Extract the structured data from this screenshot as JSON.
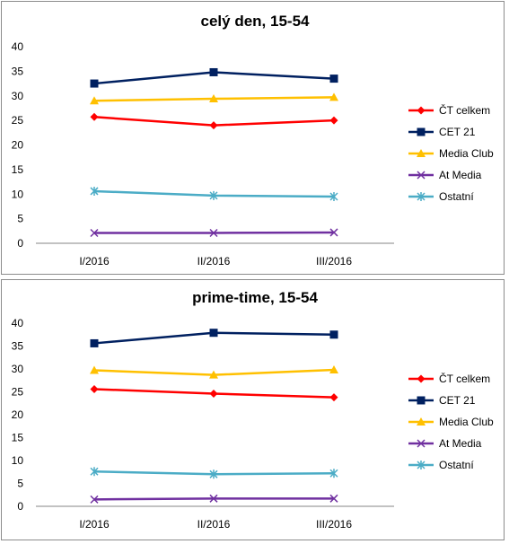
{
  "chart_data": [
    {
      "type": "line",
      "title": "celý den, 15-54",
      "categories": [
        "I/2016",
        "II/2016",
        "III/2016"
      ],
      "ylim": [
        0,
        40
      ],
      "yticks": [
        0,
        5,
        10,
        15,
        20,
        25,
        30,
        35,
        40
      ],
      "grid": false,
      "legend": "right",
      "series": [
        {
          "name": "ČT celkem",
          "values": [
            25.7,
            24.0,
            25.0
          ],
          "color": "#ff0000",
          "marker": "diamond"
        },
        {
          "name": "CET 21",
          "values": [
            32.5,
            34.8,
            33.5
          ],
          "color": "#002060",
          "marker": "square"
        },
        {
          "name": "Media Club",
          "values": [
            29.0,
            29.4,
            29.7
          ],
          "color": "#ffc000",
          "marker": "triangle"
        },
        {
          "name": "At Media",
          "values": [
            2.1,
            2.1,
            2.2
          ],
          "color": "#7030a0",
          "marker": "x"
        },
        {
          "name": "Ostatní",
          "values": [
            10.6,
            9.7,
            9.5
          ],
          "color": "#4bacc6",
          "marker": "star"
        }
      ]
    },
    {
      "type": "line",
      "title": "prime-time, 15-54",
      "categories": [
        "I/2016",
        "II/2016",
        "III/2016"
      ],
      "ylim": [
        0,
        40
      ],
      "yticks": [
        0,
        5,
        10,
        15,
        20,
        25,
        30,
        35,
        40
      ],
      "grid": false,
      "legend": "right",
      "series": [
        {
          "name": "ČT celkem",
          "values": [
            25.6,
            24.6,
            23.8
          ],
          "color": "#ff0000",
          "marker": "diamond"
        },
        {
          "name": "CET 21",
          "values": [
            35.6,
            37.9,
            37.5
          ],
          "color": "#002060",
          "marker": "square"
        },
        {
          "name": "Media Club",
          "values": [
            29.7,
            28.7,
            29.8
          ],
          "color": "#ffc000",
          "marker": "triangle"
        },
        {
          "name": "At Media",
          "values": [
            1.5,
            1.7,
            1.7
          ],
          "color": "#7030a0",
          "marker": "x"
        },
        {
          "name": "Ostatní",
          "values": [
            7.6,
            7.0,
            7.2
          ],
          "color": "#4bacc6",
          "marker": "star"
        }
      ]
    }
  ]
}
